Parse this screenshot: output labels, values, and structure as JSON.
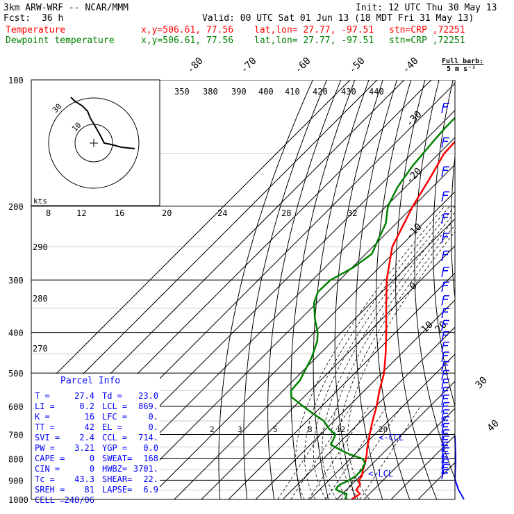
{
  "header": {
    "model": "3km ARW-WRF -- NCAR/MMM",
    "init": "Init: 12 UTC Thu 30 May 13",
    "fcst_label": "Fcst:",
    "fcst_value": "36 h",
    "valid": "Valid: 00 UTC Sat 01 Jun 13 (18 MDT Fri 31 May 13)",
    "temp_label": "Temperature",
    "dew_label": "Dewpoint temperature",
    "xy": "x,y=506.61, 77.56",
    "latlon": "lat,lon= 27.77, -97.51",
    "stn": "stn=CRP ,72251"
  },
  "wind_key": {
    "title": "Full barb:",
    "value": "5 m s⁻¹"
  },
  "hodograph_label": "kts",
  "hodo_rings": [
    "30",
    "10"
  ],
  "colors": {
    "temperature": "#ff0000",
    "dewpoint": "#008000",
    "wind": "#0000ff",
    "grid": "#000000"
  },
  "parcel": {
    "title": "Parcel Info",
    "rows": [
      [
        "T  =",
        "27.4",
        "Td =",
        "23.0"
      ],
      [
        "LI =",
        "0.2",
        "LCL =",
        "869."
      ],
      [
        "K  =",
        "16",
        "LFC =",
        "0."
      ],
      [
        "TT =",
        "42",
        "EL  =",
        "0."
      ],
      [
        "SVI =",
        "2.4",
        "CCL =",
        "714."
      ],
      [
        "PW =",
        "3.21",
        "YGP =",
        "0.0"
      ],
      [
        "CAPE =",
        "0",
        "SWEAT=",
        "168"
      ],
      [
        "CIN =",
        "0",
        "HWBZ=",
        "3701."
      ],
      [
        "Tc =",
        "43.3",
        "SHEAR=",
        "22."
      ],
      [
        "SREH =",
        "81",
        "LAPSE=",
        "6.9"
      ],
      [
        "CELL =",
        "248/06",
        "",
        ""
      ]
    ]
  },
  "marker_ccl": "<-CCL",
  "marker_lcl": "<-LCL",
  "chart_data": {
    "type": "line",
    "title": "",
    "ylabel": "",
    "pressure_ticks": [
      100,
      200,
      300,
      400,
      500,
      600,
      700,
      800,
      900,
      1000
    ],
    "isotherm_labels": [
      -80,
      -70,
      -60,
      -50,
      -40,
      -30,
      -20,
      -10,
      0,
      10,
      20,
      30,
      40
    ],
    "theta_labels": [
      "350",
      "380",
      "390",
      "400",
      "410",
      "420",
      "430",
      "440"
    ],
    "theta_side_labels": [
      "290",
      "280",
      "270"
    ],
    "mixing_ratio_upper": [
      "8",
      "12",
      "16",
      "20",
      "24",
      "28",
      "32"
    ],
    "mixing_ratio_lower": [
      "2",
      "3",
      "5",
      "8",
      "12",
      "20"
    ],
    "series": [
      {
        "name": "Temperature",
        "pressure": [
          1000,
          970,
          950,
          920,
          900,
          880,
          850,
          820,
          800,
          780,
          750,
          720,
          700,
          650,
          600,
          550,
          500,
          450,
          400,
          350,
          300,
          250,
          200,
          170,
          150,
          130,
          110,
          100
        ],
        "temperature_c": [
          25.4,
          26.5,
          23.7,
          23.0,
          21.0,
          20.6,
          18.7,
          17.1,
          15.7,
          14.3,
          11.9,
          9.7,
          8.1,
          4.2,
          0.3,
          -4.5,
          -9.2,
          -15.7,
          -23.4,
          -32.4,
          -42.6,
          -52.8,
          -60.2,
          -64.5,
          -68.1,
          -68.9,
          -69.8,
          -72.0
        ]
      },
      {
        "name": "Dewpoint temperature",
        "pressure": [
          1000,
          985,
          970,
          955,
          945,
          930,
          920,
          900,
          880,
          850,
          820,
          800,
          780,
          760,
          740,
          720,
          700,
          680,
          650,
          620,
          600,
          570,
          550,
          520,
          500,
          460,
          420,
          400,
          370,
          340,
          320,
          300,
          280,
          260,
          240,
          220,
          200,
          180,
          160,
          140,
          130,
          120,
          110,
          100
        ],
        "temperature_c": [
          23.0,
          22.4,
          21.6,
          17.5,
          15.8,
          15.5,
          15.8,
          17.4,
          18.3,
          18.3,
          17.1,
          14.5,
          7.8,
          2.4,
          -2.5,
          -3.4,
          -4.5,
          -8.7,
          -13.8,
          -21.6,
          -26.8,
          -34.6,
          -37.1,
          -37.6,
          -38.9,
          -41.6,
          -45.6,
          -48.7,
          -55.0,
          -61.0,
          -63.6,
          -63.3,
          -59.6,
          -57.7,
          -60.7,
          -63.8,
          -69.4,
          -72.9,
          -75.2,
          -76.6,
          -77.2,
          -77.3,
          -78.4,
          -79.5
        ]
      }
    ]
  }
}
